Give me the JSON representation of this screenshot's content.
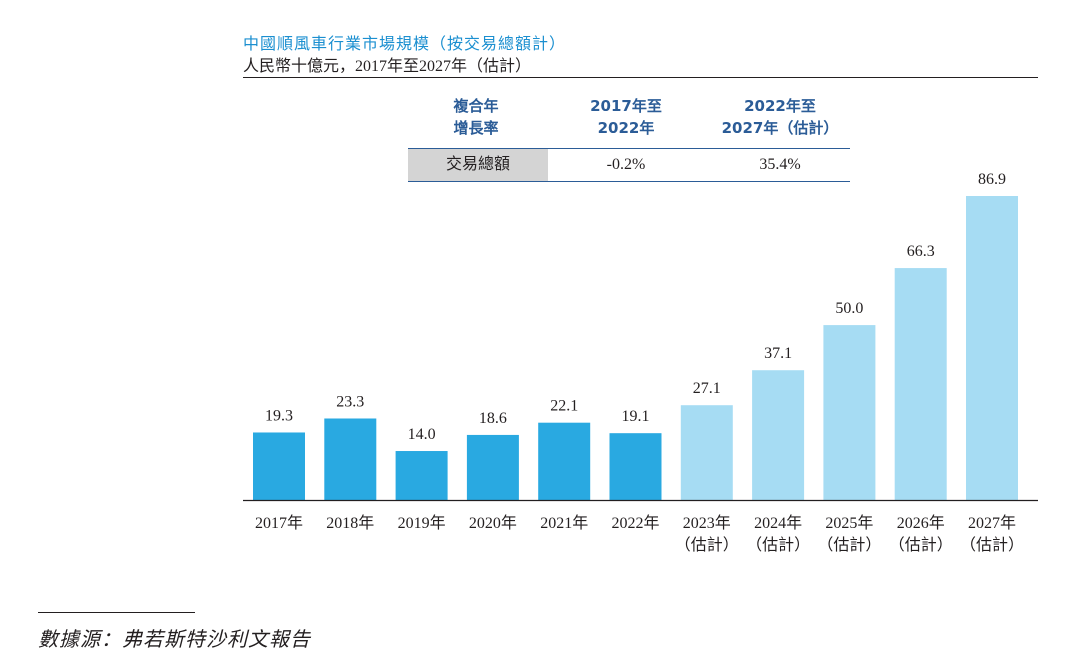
{
  "header": {
    "title": "中國順風車行業市場規模（按交易總額計）",
    "subtitle": "人民幣十億元，2017年至2027年（估計）"
  },
  "cagr_table": {
    "header_label_line1": "複合年",
    "header_label_line2": "增長率",
    "col1_line1": "2017年至",
    "col1_line2": "2022年",
    "col2_line1": "2022年至",
    "col2_line2": "2027年（估計）",
    "row_label": "交易總額",
    "col1_value": "-0.2%",
    "col2_value": "35.4%"
  },
  "colors": {
    "actual": "#29a9e1",
    "estimate": "#a6dcf3",
    "title": "#1b8fd0",
    "table_header": "#2b5c97"
  },
  "chart_data": {
    "type": "bar",
    "title": "中國順風車行業市場規模（按交易總額計）",
    "ylabel": "人民幣十億元",
    "categories": [
      "2017年",
      "2018年",
      "2019年",
      "2020年",
      "2021年",
      "2022年",
      "2023年",
      "2024年",
      "2025年",
      "2026年",
      "2027年"
    ],
    "category_notes": [
      "",
      "",
      "",
      "",
      "",
      "",
      "（估計）",
      "（估計）",
      "（估計）",
      "（估計）",
      "（估計）"
    ],
    "values": [
      19.3,
      23.3,
      14.0,
      18.6,
      22.1,
      19.1,
      27.1,
      37.1,
      50.0,
      66.3,
      86.9
    ],
    "value_labels": [
      "19.3",
      "23.3",
      "14.0",
      "18.6",
      "22.1",
      "19.1",
      "27.1",
      "37.1",
      "50.0",
      "66.3",
      "86.9"
    ],
    "estimated": [
      false,
      false,
      false,
      false,
      false,
      false,
      true,
      true,
      true,
      true,
      true
    ],
    "ylim": [
      0,
      86.9
    ],
    "grid": false
  },
  "source": "數據源：弗若斯特沙利文報告"
}
